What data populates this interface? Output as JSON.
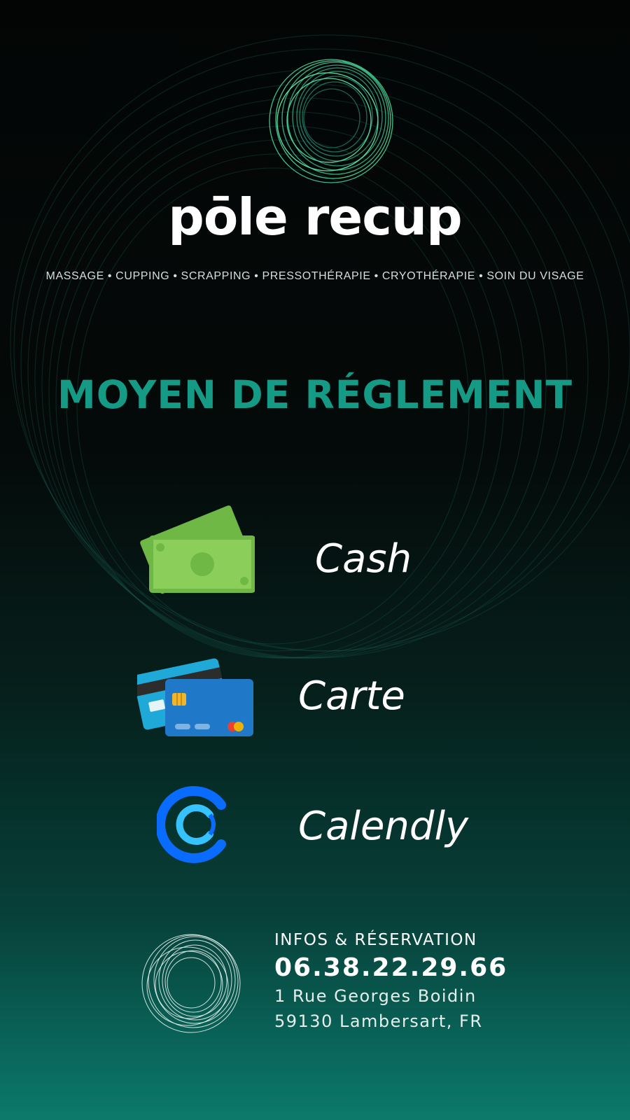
{
  "brand": {
    "name": "pōle recup"
  },
  "tagline": "MASSAGE • CUPPING • SCRAPPING • PRESSOTHÉRAPIE • CRYOTHÉRAPIE • SOIN DU VISAGE",
  "section_title": "MOYEN DE RÉGLEMENT",
  "payment_methods": [
    {
      "label": "Cash",
      "icon": "cash-icon"
    },
    {
      "label": "Carte",
      "icon": "credit-card-icon"
    },
    {
      "label": "Calendly",
      "icon": "calendly-icon"
    }
  ],
  "footer": {
    "heading": "INFOS & RÉSERVATION",
    "phone": "06.38.22.29.66",
    "address_line1": "1 Rue Georges Boidin",
    "address_line2": "59130 Lambersart, FR"
  },
  "colors": {
    "accent": "#159a86",
    "cash_green": "#8bcf5a",
    "card_blue": "#1f79c8",
    "calendly_blue": "#0a6bff"
  }
}
